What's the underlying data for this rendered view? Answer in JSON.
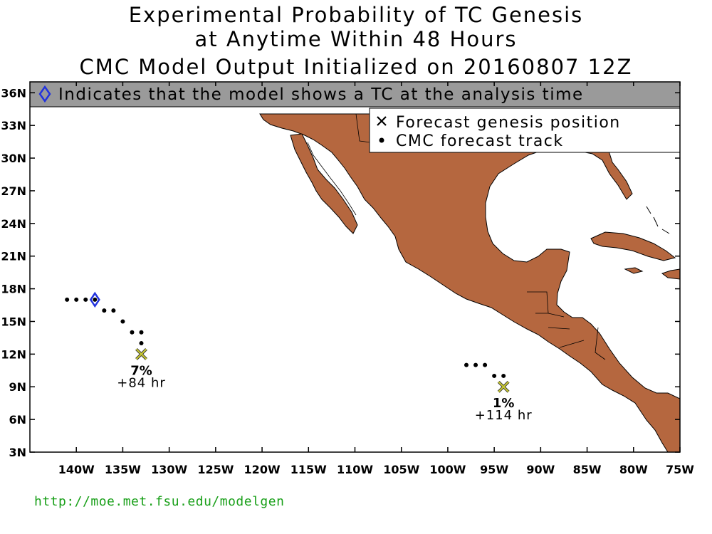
{
  "title": {
    "line1": "Experimental Probability of TC Genesis",
    "line2": "at Anytime Within 48 Hours",
    "line3": "CMC Model Output Initialized on 20160807 12Z"
  },
  "banner": {
    "text": "Indicates that the model shows a TC at the analysis time",
    "icon": "diamond-icon"
  },
  "legend": {
    "items": [
      {
        "icon": "x-marker-icon",
        "label": "Forecast genesis position"
      },
      {
        "icon": "dot-marker-icon",
        "label": "CMC forecast track"
      }
    ]
  },
  "axes": {
    "lon_min": -145,
    "lon_max": -75,
    "lat_min": 3,
    "lat_max": 37,
    "x_ticks": [
      "140W",
      "135W",
      "130W",
      "125W",
      "120W",
      "115W",
      "110W",
      "105W",
      "100W",
      "95W",
      "90W",
      "85W",
      "80W",
      "75W"
    ],
    "x_tick_values": [
      -140,
      -135,
      -130,
      -125,
      -120,
      -115,
      -110,
      -105,
      -100,
      -95,
      -90,
      -85,
      -80,
      -75
    ],
    "y_ticks": [
      "3N",
      "6N",
      "9N",
      "12N",
      "15N",
      "18N",
      "21N",
      "24N",
      "27N",
      "30N",
      "33N",
      "36N"
    ],
    "y_tick_values": [
      3,
      6,
      9,
      12,
      15,
      18,
      21,
      24,
      27,
      30,
      33,
      36
    ]
  },
  "colors": {
    "land": "#b5673f",
    "banner_bg": "#9a9a9a",
    "genesis_marker": "#c8c832",
    "diamond": "#2233dd",
    "url": "#1aa01a"
  },
  "systems": [
    {
      "genesis": {
        "lon": -133,
        "lat": 12
      },
      "probability": "7%",
      "lead_time": "+84 hr",
      "analysis_position": {
        "lon": -138,
        "lat": 17
      },
      "track": [
        {
          "lon": -141,
          "lat": 17
        },
        {
          "lon": -140,
          "lat": 17
        },
        {
          "lon": -139,
          "lat": 17
        },
        {
          "lon": -138,
          "lat": 17
        },
        {
          "lon": -137,
          "lat": 16
        },
        {
          "lon": -136,
          "lat": 16
        },
        {
          "lon": -135,
          "lat": 15
        },
        {
          "lon": -134,
          "lat": 14
        },
        {
          "lon": -133,
          "lat": 14
        },
        {
          "lon": -133,
          "lat": 13
        }
      ]
    },
    {
      "genesis": {
        "lon": -94,
        "lat": 9
      },
      "probability": "1%",
      "lead_time": "+114 hr",
      "track": [
        {
          "lon": -98,
          "lat": 11
        },
        {
          "lon": -97,
          "lat": 11
        },
        {
          "lon": -96,
          "lat": 11
        },
        {
          "lon": -95,
          "lat": 10
        },
        {
          "lon": -94,
          "lat": 10
        }
      ]
    }
  ],
  "footer": {
    "url": "http://moe.met.fsu.edu/modelgen"
  }
}
